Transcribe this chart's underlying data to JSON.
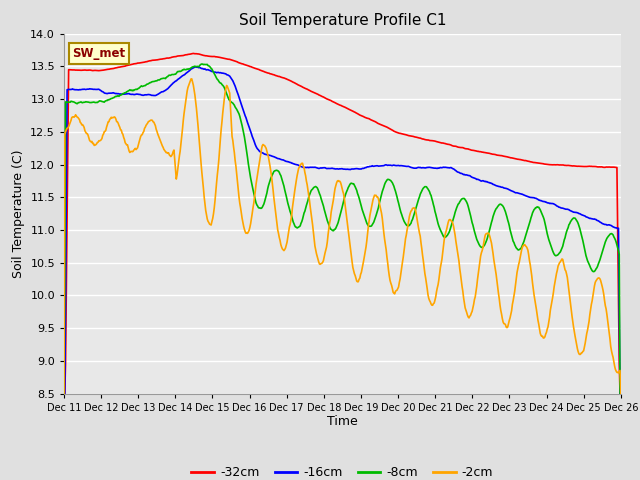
{
  "title": "Soil Temperature Profile C1",
  "xlabel": "Time",
  "ylabel": "Soil Temperature (C)",
  "ylim": [
    8.5,
    14.0
  ],
  "yticks": [
    8.5,
    9.0,
    9.5,
    10.0,
    10.5,
    11.0,
    11.5,
    12.0,
    12.5,
    13.0,
    13.5,
    14.0
  ],
  "x_labels": [
    "Dec 11",
    "Dec 12",
    "Dec 13",
    "Dec 14",
    "Dec 15",
    "Dec 16",
    "Dec 17",
    "Dec 18",
    "Dec 19",
    "Dec 20",
    "Dec 21",
    "Dec 22",
    "Dec 23",
    "Dec 24",
    "Dec 25",
    "Dec 26"
  ],
  "fig_bg_color": "#e0e0e0",
  "plot_bg_color": "#e8e8e8",
  "grid_color": "#ffffff",
  "legend_label": "SW_met",
  "series_colors": [
    "#ff0000",
    "#0000ff",
    "#00bb00",
    "#ffa500"
  ],
  "series_labels": [
    "-32cm",
    "-16cm",
    "-8cm",
    "-2cm"
  ],
  "line_width": 1.2
}
